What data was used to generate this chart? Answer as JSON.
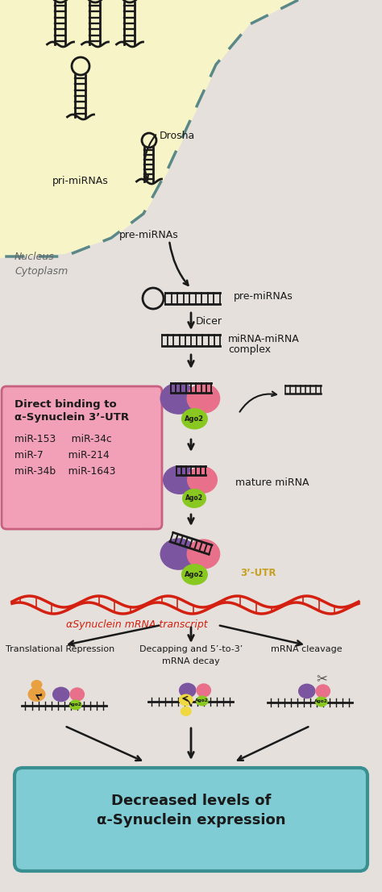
{
  "bg_color": "#e5e0db",
  "nucleus_color": "#f7f5c8",
  "nucleus_border": "#5a8888",
  "pink_box_color": "#f2a0b8",
  "pink_box_border": "#c86080",
  "teal_box_color": "#80ccd4",
  "teal_box_border": "#3a9090",
  "direct_binding_title": "Direct binding to\nα-Synuclein 3’-UTR",
  "direct_binding_line1": "miR-153     miR-34c",
  "direct_binding_line2": "miR-7        miR-214",
  "direct_binding_line3": "miR-34b    miR-1643",
  "final_box_text": "Decreased levels of\nα-Synuclein expression",
  "labels": {
    "pri_mirna": "pri-miRNAs",
    "drosha": "Drosha",
    "pre_mirna_nucleus": "pre-miRNAs",
    "pre_mirna_cyto": "pre-miRNAs",
    "dicer": "Dicer",
    "mirna_complex_1": "miRNA-miRNA",
    "mirna_complex_2": "complex",
    "mature_mirna": "mature miRNA",
    "alpha_syn": "αSynuclein mRNA transcript",
    "trans_rep": "Translational Repression",
    "decapping_1": "Decapping and 5’-to-3’",
    "decapping_2": "mRNA decay",
    "mrna_cleavage": "mRNA cleavage",
    "nucleus_label": "Nucleus",
    "cytoplasm_label": "Cytoplasm",
    "ago2": "Ago2",
    "utr3": "3’-UTR"
  },
  "colors": {
    "purple_blob": "#7b55a0",
    "pink_blob": "#e8708a",
    "green_blob": "#88c820",
    "orange_blob": "#e8a040",
    "yellow_blob": "#f0d840",
    "dark": "#1a1a1a",
    "alpha_red": "#d42010"
  }
}
